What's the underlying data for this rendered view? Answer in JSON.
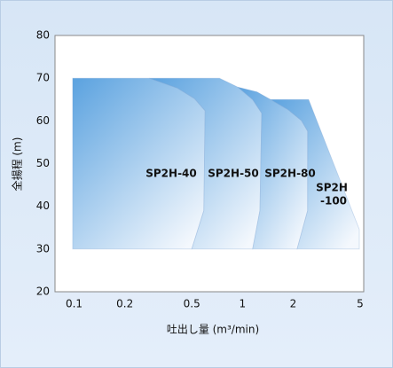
{
  "chart_data": {
    "type": "area-regions",
    "xlabel": "吐出し量 (m³/min)",
    "ylabel": "全揚程 (m)",
    "xscale": "log",
    "xlim": [
      0.077,
      5.25
    ],
    "ylim": [
      20,
      80
    ],
    "xticks": [
      0.1,
      0.2,
      0.5,
      1,
      2,
      5
    ],
    "yticks": [
      20,
      30,
      40,
      50,
      60,
      70,
      80
    ],
    "color": "#5ea4e0",
    "series": [
      {
        "label_lines": [
          "SP2H-40"
        ],
        "x": [
          0.098,
          0.098,
          0.28,
          0.41,
          0.52,
          0.6,
          0.59,
          0.5
        ],
        "values": [
          30,
          70,
          70,
          67.7,
          65.2,
          62.4,
          39,
          30
        ]
      },
      {
        "label_lines": [
          "SP2H-50"
        ],
        "x": [
          0.5,
          0.59,
          0.6,
          0.52,
          0.41,
          0.28,
          0.73,
          0.94,
          1.15,
          1.3,
          1.27,
          1.15
        ],
        "values": [
          30,
          39,
          62.4,
          65.2,
          67.7,
          70,
          70,
          67.9,
          65,
          61.8,
          39,
          30
        ]
      },
      {
        "label_lines": [
          "SP2H-80"
        ],
        "x": [
          1.15,
          1.27,
          1.3,
          1.15,
          0.94,
          1.22,
          1.47,
          1.87,
          2.24,
          2.44,
          2.44,
          2.11
        ],
        "values": [
          30,
          39,
          61.8,
          65,
          67.9,
          66.8,
          65,
          62.6,
          60.1,
          57.6,
          39,
          30
        ]
      },
      {
        "label_lines": [
          "SP2H",
          "-100"
        ],
        "x": [
          2.11,
          2.44,
          2.44,
          2.24,
          1.87,
          1.47,
          2.47,
          4.94,
          4.94
        ],
        "values": [
          30,
          39,
          57.6,
          60.1,
          62.6,
          65,
          65,
          34.6,
          30
        ]
      }
    ]
  }
}
